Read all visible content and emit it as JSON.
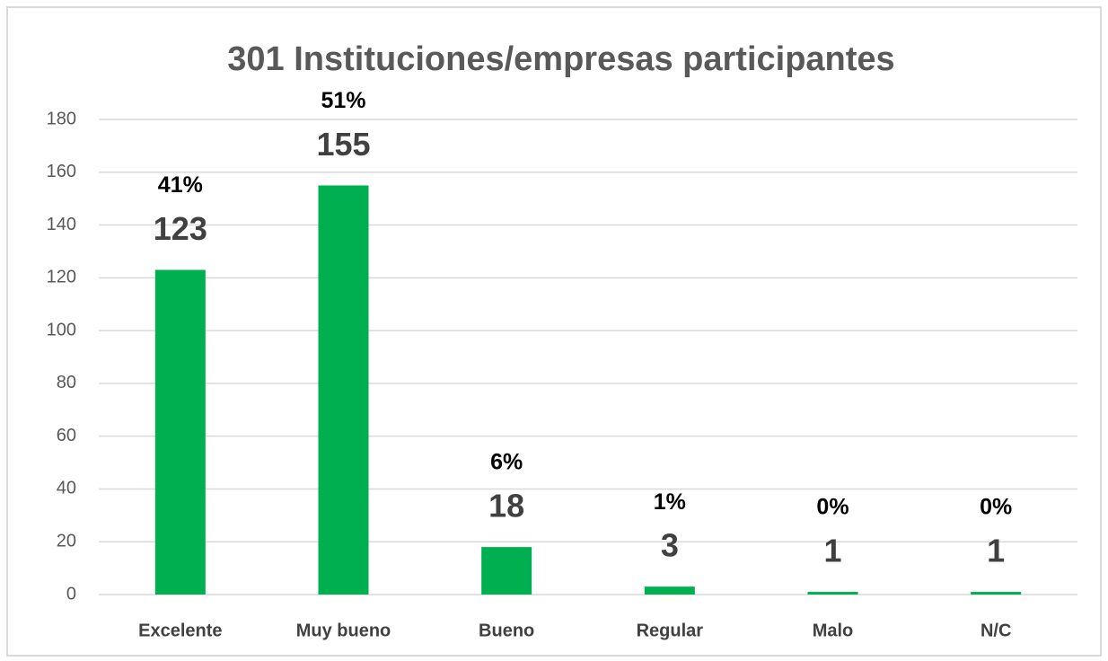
{
  "chart_data": {
    "type": "bar",
    "title": "301 Instituciones/empresas participantes",
    "categories": [
      "Excelente",
      "Muy bueno",
      "Bueno",
      "Regular",
      "Malo",
      "N/C"
    ],
    "values": [
      123,
      155,
      18,
      3,
      1,
      1
    ],
    "percentages": [
      "41%",
      "51%",
      "6%",
      "1%",
      "0%",
      "0%"
    ],
    "color": "#00b050",
    "ylim": [
      0,
      180
    ],
    "yticks": [
      0,
      20,
      40,
      60,
      80,
      100,
      120,
      140,
      160,
      180
    ],
    "grid": true
  }
}
